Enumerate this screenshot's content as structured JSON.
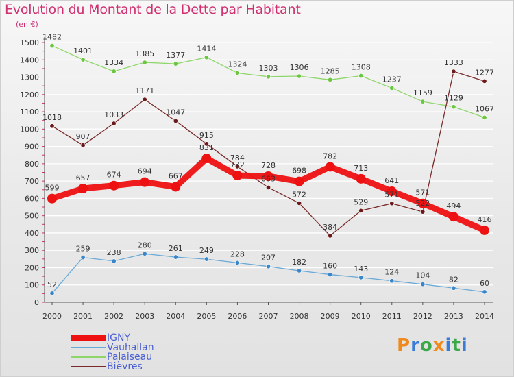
{
  "chart_data": {
    "type": "line",
    "title": "Evolution du Montant de la Dette par Habitant",
    "subtitle": "(en €)",
    "xlabel": "",
    "ylabel": "",
    "ylim": [
      0,
      1500
    ],
    "yticks": [
      0,
      100,
      200,
      300,
      400,
      500,
      600,
      700,
      800,
      900,
      1000,
      1100,
      1200,
      1300,
      1400,
      1500
    ],
    "grid": "horizontal",
    "legend_position": "bottom-left",
    "categories": [
      "2000",
      "2001",
      "2002",
      "2003",
      "2004",
      "2005",
      "2006",
      "2007",
      "2008",
      "2009",
      "2010",
      "2011",
      "2012",
      "2013",
      "2014"
    ],
    "series": [
      {
        "name": "IGNY",
        "color": "#ee1111",
        "marker_color": "#ee1111",
        "thick": true,
        "values": [
          599,
          657,
          674,
          694,
          667,
          831,
          732,
          728,
          698,
          782,
          713,
          641,
          571,
          494,
          416
        ]
      },
      {
        "name": "Vauhallan",
        "color": "#6aaad8",
        "marker_color": "#3a86c8",
        "thick": false,
        "values": [
          52,
          259,
          238,
          280,
          261,
          249,
          228,
          207,
          182,
          160,
          143,
          124,
          104,
          82,
          60
        ]
      },
      {
        "name": "Palaiseau",
        "color": "#8fd66a",
        "marker_color": "#6cc640",
        "thick": false,
        "values": [
          1482,
          1401,
          1334,
          1385,
          1377,
          1414,
          1324,
          1303,
          1306,
          1285,
          1308,
          1237,
          1159,
          1129,
          1067
        ]
      },
      {
        "name": "Bièvres",
        "color": "#7a2a2a",
        "marker_color": "#6a1a1a",
        "thick": false,
        "values": [
          1018,
          907,
          1033,
          1171,
          1047,
          915,
          784,
          663,
          572,
          384,
          529,
          571,
          522,
          1333,
          1277
        ]
      }
    ]
  },
  "logo": {
    "p": "P",
    "r": "r",
    "o": "o",
    "x": "x",
    "i": "i",
    "t": "t",
    "i2": "i"
  }
}
